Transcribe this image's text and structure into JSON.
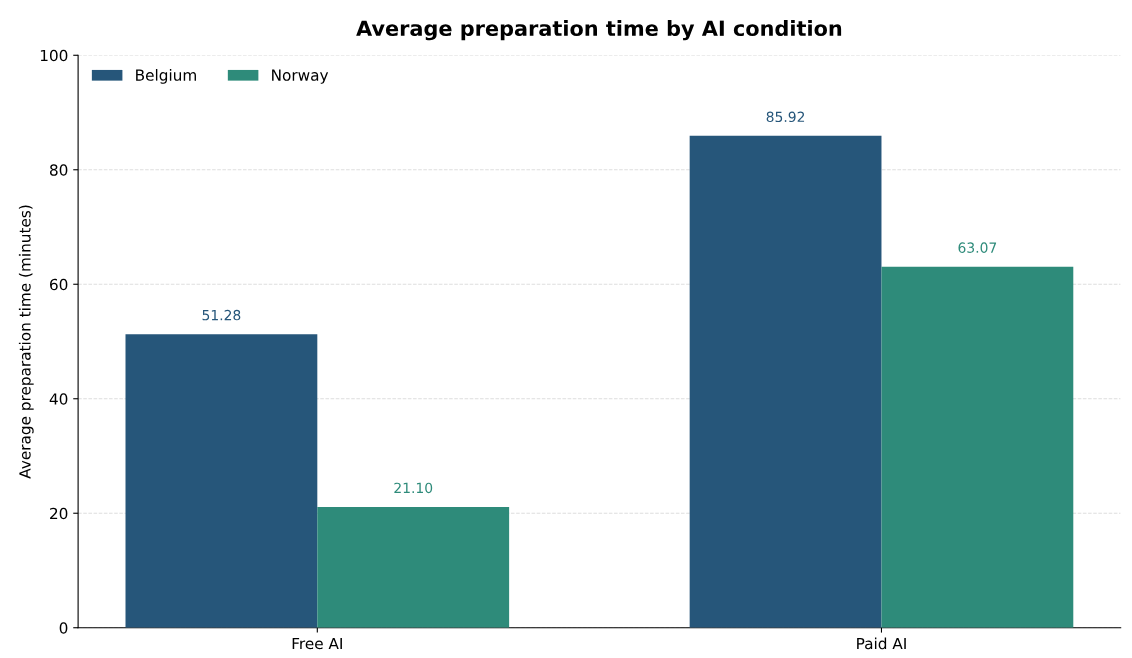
{
  "chart_data": {
    "type": "bar",
    "title": "Average preparation time by AI condition",
    "ylabel": "Average preparation time (minutes)",
    "categories": [
      "Free AI",
      "Paid AI"
    ],
    "series": [
      {
        "name": "Belgium",
        "color": "#26567a",
        "values": [
          51.28,
          85.92
        ],
        "value_labels": [
          "51.28",
          "85.92"
        ]
      },
      {
        "name": "Norway",
        "color": "#2e8b7a",
        "values": [
          21.1,
          63.07
        ],
        "value_labels": [
          "21.10",
          "63.07"
        ]
      }
    ],
    "ylim": [
      0,
      100
    ],
    "yticks": [
      0,
      20,
      40,
      60,
      80,
      100
    ],
    "grid": "y",
    "legend": "top left"
  }
}
